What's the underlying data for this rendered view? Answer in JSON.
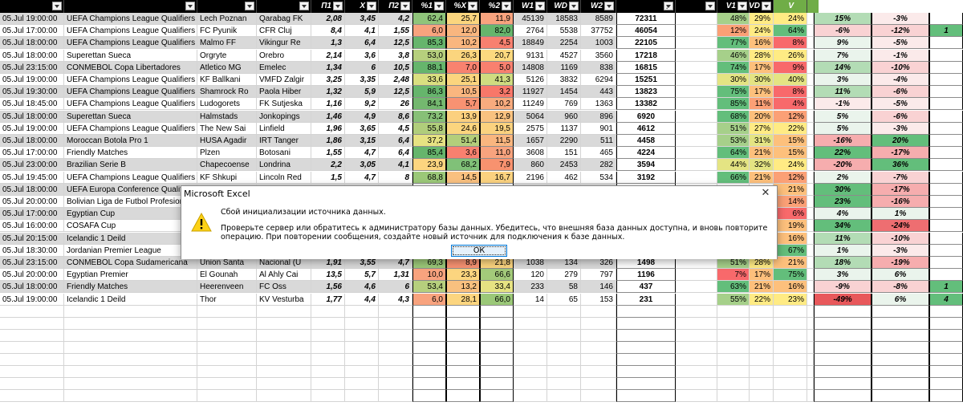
{
  "header": {
    "p1": "П1",
    "x": "Х",
    "p2": "П2",
    "pct1": "%1",
    "pctx": "%Х",
    "pct2": "%2",
    "w1": "W1",
    "wd": "WD",
    "w2": "W2",
    "v1": "V1",
    "vd": "VD",
    "v2": "V"
  },
  "rows": [
    {
      "date": "05.Jul 19:00:00",
      "league": "UEFA Champions League Qualifiers",
      "home": "Lech Poznan",
      "away": "Qarabag FK",
      "p1": "2,08",
      "x": "3,45",
      "p2": "4,2",
      "pct1": "62,4",
      "pctx": "25,7",
      "pct2": "11,9",
      "w1": "45139",
      "wd": "18583",
      "w2": "8589",
      "total": "72311",
      "v1": "48%",
      "vd": "29%",
      "v2": "24%",
      "e1": "15%",
      "e2": "-3%",
      "e3": ""
    },
    {
      "date": "05.Jul 17:00:00",
      "league": "UEFA Champions League Qualifiers",
      "home": "FC Pyunik",
      "away": "CFR Cluj",
      "p1": "8,4",
      "x": "4,1",
      "p2": "1,55",
      "pct1": "6,0",
      "pctx": "12,0",
      "pct2": "82,0",
      "w1": "2764",
      "wd": "5538",
      "w2": "37752",
      "total": "46054",
      "v1": "12%",
      "vd": "24%",
      "v2": "64%",
      "e1": "-6%",
      "e2": "-12%",
      "e3": "1"
    },
    {
      "date": "05.Jul 18:00:00",
      "league": "UEFA Champions League Qualifiers",
      "home": "Malmo FF",
      "away": "Vikingur Re",
      "p1": "1,3",
      "x": "6,4",
      "p2": "12,5",
      "pct1": "85,3",
      "pctx": "10,2",
      "pct2": "4,5",
      "w1": "18849",
      "wd": "2254",
      "w2": "1003",
      "total": "22105",
      "v1": "77%",
      "vd": "16%",
      "v2": "8%",
      "e1": "9%",
      "e2": "-5%",
      "e3": ""
    },
    {
      "date": "05.Jul 18:00:00",
      "league": "Superettan Sueca",
      "home": "Orgryte",
      "away": "Orebro",
      "p1": "2,14",
      "x": "3,6",
      "p2": "3,8",
      "pct1": "53,0",
      "pctx": "26,3",
      "pct2": "20,7",
      "w1": "9131",
      "wd": "4527",
      "w2": "3560",
      "total": "17218",
      "v1": "46%",
      "vd": "28%",
      "v2": "26%",
      "e1": "7%",
      "e2": "-1%",
      "e3": ""
    },
    {
      "date": "05.Jul 23:15:00",
      "league": "CONMEBOL Copa Libertadores",
      "home": "Atletico MG",
      "away": "Emelec",
      "p1": "1,34",
      "x": "6",
      "p2": "10,5",
      "pct1": "88,1",
      "pctx": "7,0",
      "pct2": "5,0",
      "w1": "14808",
      "wd": "1169",
      "w2": "838",
      "total": "16815",
      "v1": "74%",
      "vd": "17%",
      "v2": "9%",
      "e1": "14%",
      "e2": "-10%",
      "e3": ""
    },
    {
      "date": "05.Jul 19:00:00",
      "league": "UEFA Champions League Qualifiers",
      "home": "KF Ballkani",
      "away": "VMFD Zalgir",
      "p1": "3,25",
      "x": "3,35",
      "p2": "2,48",
      "pct1": "33,6",
      "pctx": "25,1",
      "pct2": "41,3",
      "w1": "5126",
      "wd": "3832",
      "w2": "6294",
      "total": "15251",
      "v1": "30%",
      "vd": "30%",
      "v2": "40%",
      "e1": "3%",
      "e2": "-4%",
      "e3": ""
    },
    {
      "date": "05.Jul 19:30:00",
      "league": "UEFA Champions League Qualifiers",
      "home": "Shamrock Ro",
      "away": "Paola Hiber",
      "p1": "1,32",
      "x": "5,9",
      "p2": "12,5",
      "pct1": "86,3",
      "pctx": "10,5",
      "pct2": "3,2",
      "w1": "11927",
      "wd": "1454",
      "w2": "443",
      "total": "13823",
      "v1": "75%",
      "vd": "17%",
      "v2": "8%",
      "e1": "11%",
      "e2": "-6%",
      "e3": ""
    },
    {
      "date": "05.Jul 18:45:00",
      "league": "UEFA Champions League Qualifiers",
      "home": "Ludogorets",
      "away": "FK Sutjeska",
      "p1": "1,16",
      "p2": "26",
      "x": "9,2",
      "pct1": "84,1",
      "pctx": "5,7",
      "pct2": "10,2",
      "w1": "11249",
      "wd": "769",
      "w2": "1363",
      "total": "13382",
      "v1": "85%",
      "vd": "11%",
      "v2": "4%",
      "e1": "-1%",
      "e2": "-5%",
      "e3": ""
    },
    {
      "date": "05.Jul 18:00:00",
      "league": "Superettan Sueca",
      "home": "Halmstads",
      "away": "Jonkopings",
      "p1": "1,46",
      "x": "4,9",
      "p2": "8,6",
      "pct1": "73,2",
      "pctx": "13,9",
      "pct2": "12,9",
      "w1": "5064",
      "wd": "960",
      "w2": "896",
      "total": "6920",
      "v1": "68%",
      "vd": "20%",
      "v2": "12%",
      "e1": "5%",
      "e2": "-6%",
      "e3": ""
    },
    {
      "date": "05.Jul 19:00:00",
      "league": "UEFA Champions League Qualifiers",
      "home": "The New Sai",
      "away": "Linfield",
      "p1": "1,96",
      "x": "3,65",
      "p2": "4,5",
      "pct1": "55,8",
      "pctx": "24,6",
      "pct2": "19,5",
      "w1": "2575",
      "wd": "1137",
      "w2": "901",
      "total": "4612",
      "v1": "51%",
      "vd": "27%",
      "v2": "22%",
      "e1": "5%",
      "e2": "-3%",
      "e3": ""
    },
    {
      "date": "05.Jul 18:00:00",
      "league": "Moroccan Botola Pro 1",
      "home": "HUSA Agadir",
      "away": "IRT Tanger",
      "p1": "1,86",
      "x": "3,15",
      "p2": "6,4",
      "pct1": "37,2",
      "pctx": "51,4",
      "pct2": "11,5",
      "w1": "1657",
      "wd": "2290",
      "w2": "511",
      "total": "4458",
      "v1": "53%",
      "vd": "31%",
      "v2": "15%",
      "e1": "-16%",
      "e2": "20%",
      "e3": ""
    },
    {
      "date": "05.Jul 17:00:00",
      "league": "Friendly Matches",
      "home": "Plzen",
      "away": "Botosani",
      "p1": "1,55",
      "x": "4,7",
      "p2": "6,4",
      "pct1": "85,4",
      "pctx": "3,6",
      "pct2": "11,0",
      "w1": "3608",
      "wd": "151",
      "w2": "465",
      "total": "4224",
      "v1": "64%",
      "vd": "21%",
      "v2": "15%",
      "e1": "22%",
      "e2": "-17%",
      "e3": ""
    },
    {
      "date": "05.Jul 23:00:00",
      "league": "Brazilian Serie B",
      "home": "Chapecoense",
      "away": "Londrina",
      "p1": "2,2",
      "x": "3,05",
      "p2": "4,1",
      "pct1": "23,9",
      "pctx": "68,2",
      "pct2": "7,9",
      "w1": "860",
      "wd": "2453",
      "w2": "282",
      "total": "3594",
      "v1": "44%",
      "vd": "32%",
      "v2": "24%",
      "e1": "-20%",
      "e2": "36%",
      "e3": ""
    },
    {
      "date": "05.Jul 19:45:00",
      "league": "UEFA Champions League Qualifiers",
      "home": "KF Shkupi",
      "away": "Lincoln Red",
      "p1": "1,5",
      "x": "4,7",
      "p2": "8",
      "pct1": "68,8",
      "pctx": "14,5",
      "pct2": "16,7",
      "w1": "2196",
      "wd": "462",
      "w2": "534",
      "total": "3192",
      "v1": "66%",
      "vd": "21%",
      "v2": "12%",
      "e1": "2%",
      "e2": "-7%",
      "e3": ""
    },
    {
      "date": "05.Jul 18:00:00",
      "league": "UEFA Europa Conference Qualifiers",
      "home": "",
      "away": "",
      "p1": "",
      "x": "",
      "p2": "",
      "pct1": "",
      "pctx": "",
      "pct2": "",
      "w1": "",
      "wd": "",
      "w2": "",
      "total": "",
      "v1": "",
      "vd": "",
      "v2": "21%",
      "e1": "30%",
      "e2": "-17%",
      "e3": ""
    },
    {
      "date": "05.Jul 20:00:00",
      "league": "Bolivian Liga de Futbol Profesional",
      "home": "",
      "away": "",
      "p1": "",
      "x": "",
      "p2": "",
      "pct1": "",
      "pctx": "",
      "pct2": "",
      "w1": "",
      "wd": "",
      "w2": "",
      "total": "",
      "v1": "",
      "vd": "",
      "v2": "14%",
      "e1": "23%",
      "e2": "-16%",
      "e3": ""
    },
    {
      "date": "05.Jul 17:00:00",
      "league": "Egyptian Cup",
      "home": "",
      "away": "",
      "p1": "",
      "x": "",
      "p2": "",
      "pct1": "",
      "pctx": "",
      "pct2": "",
      "w1": "",
      "wd": "",
      "w2": "",
      "total": "",
      "v1": "",
      "vd": "",
      "v2": "6%",
      "e1": "4%",
      "e2": "1%",
      "e3": ""
    },
    {
      "date": "05.Jul 16:00:00",
      "league": "COSAFA Cup",
      "home": "",
      "away": "",
      "p1": "",
      "x": "",
      "p2": "",
      "pct1": "",
      "pctx": "",
      "pct2": "",
      "w1": "",
      "wd": "",
      "w2": "",
      "total": "",
      "v1": "",
      "vd": "",
      "v2": "19%",
      "e1": "34%",
      "e2": "-24%",
      "e3": ""
    },
    {
      "date": "05.Jul 20:15:00",
      "league": "Icelandic 1 Deild",
      "home": "",
      "away": "",
      "p1": "",
      "x": "",
      "p2": "",
      "pct1": "",
      "pctx": "",
      "pct2": "",
      "w1": "",
      "wd": "",
      "w2": "",
      "total": "",
      "v1": "",
      "vd": "",
      "v2": "16%",
      "e1": "11%",
      "e2": "-10%",
      "e3": ""
    },
    {
      "date": "05.Jul 18:30:00",
      "league": "Jordanian Premier League",
      "home": "",
      "away": "",
      "p1": "",
      "x": "",
      "p2": "",
      "pct1": "",
      "pctx": "",
      "pct2": "",
      "w1": "",
      "wd": "",
      "w2": "",
      "total": "",
      "v1": "",
      "vd": "",
      "v2": "67%",
      "e1": "1%",
      "e2": "-3%",
      "e3": ""
    },
    {
      "date": "05.Jul 23:15:00",
      "league": "CONMEBOL Copa Sudamericana",
      "home": "Union Santa",
      "away": "Nacional (U",
      "p1": "1,91",
      "x": "3,55",
      "p2": "4,7",
      "pct1": "69,3",
      "pctx": "8,9",
      "pct2": "21,8",
      "w1": "1038",
      "wd": "134",
      "w2": "326",
      "total": "1498",
      "v1": "51%",
      "vd": "28%",
      "v2": "21%",
      "e1": "18%",
      "e2": "-19%",
      "e3": ""
    },
    {
      "date": "05.Jul 20:00:00",
      "league": "Egyptian Premier",
      "home": "El Gounah",
      "away": "Al Ahly Cai",
      "p1": "13,5",
      "x": "5,7",
      "p2": "1,31",
      "pct1": "10,0",
      "pctx": "23,3",
      "pct2": "66,6",
      "w1": "120",
      "wd": "279",
      "w2": "797",
      "total": "1196",
      "v1": "7%",
      "vd": "17%",
      "v2": "75%",
      "e1": "3%",
      "e2": "6%",
      "e3": ""
    },
    {
      "date": "05.Jul 18:00:00",
      "league": "Friendly Matches",
      "home": "Heerenveen",
      "away": "FC Oss",
      "p1": "1,56",
      "x": "4,6",
      "p2": "6",
      "pct1": "53,4",
      "pctx": "13,2",
      "pct2": "33,4",
      "w1": "233",
      "wd": "58",
      "w2": "146",
      "total": "437",
      "v1": "63%",
      "vd": "21%",
      "v2": "16%",
      "e1": "-9%",
      "e2": "-8%",
      "e3": "1"
    },
    {
      "date": "05.Jul 19:00:00",
      "league": "Icelandic 1 Deild",
      "home": "Thor",
      "away": "KV Vesturba",
      "p1": "1,77",
      "x": "4,4",
      "p2": "4,3",
      "pct1": "6,0",
      "pctx": "28,1",
      "pct2": "66,0",
      "w1": "14",
      "wd": "65",
      "w2": "153",
      "total": "231",
      "v1": "55%",
      "vd": "22%",
      "v2": "23%",
      "e1": "-49%",
      "e2": "6%",
      "e3": "4"
    }
  ],
  "colors": {
    "pct": {
      "row0": [
        "#8fc47a",
        "#fbd57e",
        "#f8a37e"
      ],
      "row1": [
        "#f8a37e",
        "#f9b67f",
        "#66b56c"
      ],
      "row2": [
        "#66b56c",
        "#f9b67f",
        "#f8806f"
      ],
      "row3": [
        "#b6cf7d",
        "#fbd57e",
        "#fcd97f"
      ],
      "row4": [
        "#66b56c",
        "#f8826f",
        "#f8806f"
      ],
      "row5": [
        "#dadf80",
        "#fbd57e",
        "#cfdc80"
      ],
      "row6": [
        "#66b56c",
        "#f9b67f",
        "#f87769"
      ],
      "row7": [
        "#74b86f",
        "#f89272",
        "#f8ab7e"
      ],
      "row8": [
        "#87c077",
        "#fbd07e",
        "#f9c280"
      ],
      "row9": [
        "#b0cd7b",
        "#fbd57e",
        "#fbd27f"
      ],
      "row10": [
        "#e6e282",
        "#b3ce7b",
        "#f9b67f"
      ],
      "row11": [
        "#66b56c",
        "#f8806f",
        "#f8a37e"
      ],
      "row12": [
        "#fcd57f",
        "#80c178",
        "#f8926f"
      ],
      "row13": [
        "#9bc878",
        "#f9c07f",
        "#fbd27f"
      ],
      "row20": [
        "#9bc878",
        "#f89272",
        "#fcd57f"
      ],
      "row21": [
        "#f8a37e",
        "#fcd57f",
        "#a3ca7a"
      ],
      "row22": [
        "#b6cf7d",
        "#f9c07f",
        "#e6e282"
      ],
      "row23": [
        "#f8a37e",
        "#fcd57f",
        "#9bc878"
      ]
    }
  },
  "dialog": {
    "title": "Microsoft Excel",
    "close": "✕",
    "message_title": "Сбой инициализации источника данных.",
    "message_body": "Проверьте сервер или обратитесь к администратору базы данных. Убедитесь, что внешняя база данных доступна, и вновь повторите операцию. При повторении сообщения, создайте новый источник для подключения к базе данных.",
    "ok_label": "ОК",
    "icon": "warning-icon"
  }
}
